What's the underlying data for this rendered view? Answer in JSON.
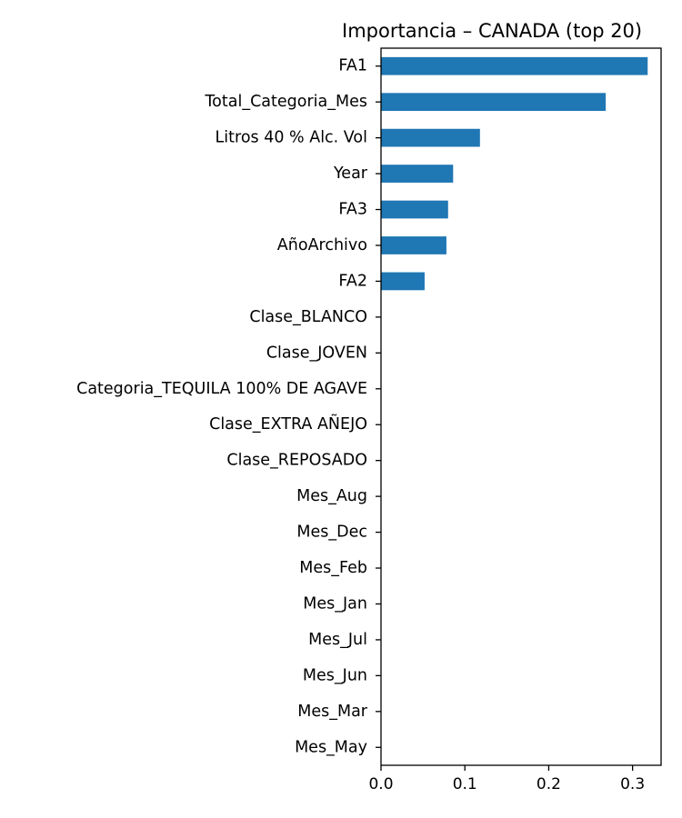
{
  "chart_data": {
    "type": "bar",
    "orientation": "horizontal",
    "title": "Importancia – CANADA (top 20)",
    "xlabel": "",
    "ylabel": "",
    "categories": [
      "FA1",
      "Total_Categoria_Mes",
      "Litros 40 % Alc. Vol",
      "Year",
      "FA3",
      "AñoArchivo",
      "FA2",
      "Clase_BLANCO",
      "Clase_JOVEN",
      "Categoria_TEQUILA 100% DE AGAVE",
      "Clase_EXTRA AÑEJO",
      "Clase_REPOSADO",
      "Mes_Aug",
      "Mes_Dec",
      "Mes_Feb",
      "Mes_Jan",
      "Mes_Jul",
      "Mes_Jun",
      "Mes_Mar",
      "Mes_May"
    ],
    "values": [
      0.318,
      0.268,
      0.118,
      0.086,
      0.08,
      0.078,
      0.052,
      0,
      0,
      0,
      0,
      0,
      0,
      0,
      0,
      0,
      0,
      0,
      0,
      0
    ],
    "xlim": [
      0,
      0.334
    ],
    "xticks": [
      "0.0",
      "0.1",
      "0.2",
      "0.3"
    ],
    "xtick_values": [
      0,
      0.1,
      0.2,
      0.3
    ],
    "grid": false,
    "legend": "none",
    "bar_color": "#1f77b4"
  }
}
